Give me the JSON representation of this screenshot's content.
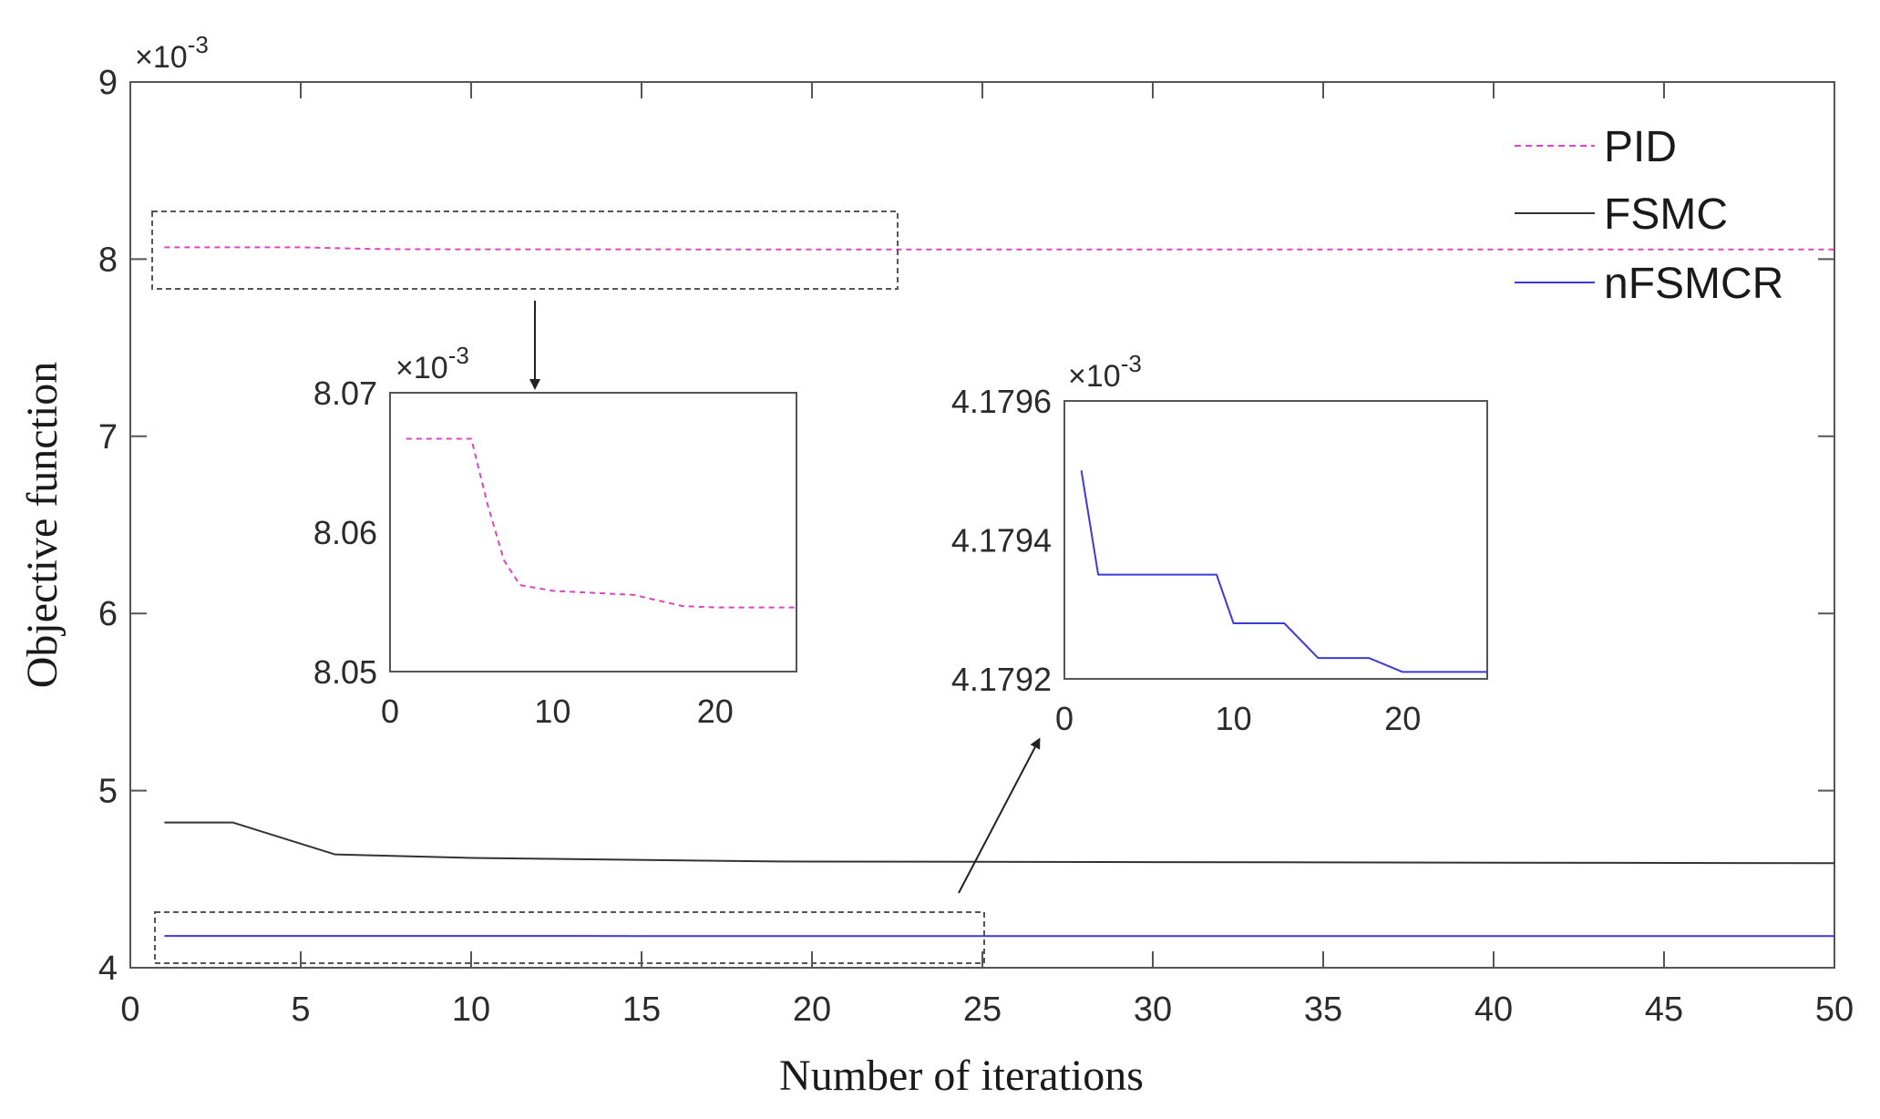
{
  "chart_data": [
    {
      "type": "line",
      "xlabel": "Number of iterations",
      "ylabel": "Objective function",
      "y_multiplier": "×10",
      "y_multiplier_exp": "-3",
      "xlim": [
        0,
        50
      ],
      "ylim": [
        4,
        9
      ],
      "x_ticks": [
        "0",
        "5",
        "10",
        "15",
        "20",
        "25",
        "30",
        "35",
        "40",
        "45",
        "50"
      ],
      "y_ticks": [
        "4",
        "5",
        "6",
        "7",
        "8",
        "9"
      ],
      "legend_position": "top-right",
      "series": [
        {
          "name": "PID",
          "color": "#d946c4",
          "style": "dashed",
          "x": [
            1,
            5,
            6,
            7,
            8,
            10,
            15,
            18,
            20,
            25,
            50
          ],
          "y": [
            8.0667,
            8.0667,
            8.062,
            8.058,
            8.0562,
            8.0558,
            8.0555,
            8.0547,
            8.0546,
            8.0546,
            8.0546
          ]
        },
        {
          "name": "FSMC",
          "color": "#333333",
          "style": "solid",
          "x": [
            1,
            3,
            6,
            10,
            19,
            50
          ],
          "y": [
            4.82,
            4.82,
            4.64,
            4.62,
            4.6,
            4.59
          ]
        },
        {
          "name": "nFSMCR",
          "color": "#3b3bd6",
          "style": "solid",
          "x": [
            1,
            2,
            9,
            10,
            13,
            15,
            18,
            20,
            50
          ],
          "y": [
            4.1795,
            4.17935,
            4.17935,
            4.17928,
            4.17928,
            4.17923,
            4.17923,
            4.17921,
            4.17921
          ]
        }
      ]
    },
    {
      "type": "line",
      "xlim": [
        0,
        25
      ],
      "ylim": [
        8.05,
        8.07
      ],
      "x_ticks": [
        "0",
        "10",
        "20"
      ],
      "y_ticks": [
        "8.05",
        "8.06",
        "8.07"
      ],
      "y_multiplier": "×10",
      "y_multiplier_exp": "-3",
      "series": [
        {
          "color": "#d946c4",
          "style": "dashed",
          "x": [
            1,
            5,
            6,
            7,
            8,
            10,
            15,
            18,
            20,
            25
          ],
          "y": [
            8.0667,
            8.0667,
            8.062,
            8.058,
            8.0562,
            8.0558,
            8.0555,
            8.0547,
            8.0546,
            8.0546
          ]
        }
      ]
    },
    {
      "type": "line",
      "xlim": [
        0,
        25
      ],
      "ylim": [
        4.1792,
        4.1796
      ],
      "x_ticks": [
        "0",
        "10",
        "20"
      ],
      "y_ticks": [
        "4.1792",
        "4.1794",
        "4.1796"
      ],
      "y_multiplier": "×10",
      "y_multiplier_exp": "-3",
      "series": [
        {
          "color": "#3b3bd6",
          "style": "solid",
          "x": [
            1,
            2,
            9,
            10,
            13,
            15,
            18,
            20,
            25
          ],
          "y": [
            4.1795,
            4.17935,
            4.17935,
            4.17928,
            4.17928,
            4.17923,
            4.17923,
            4.17921,
            4.17921
          ]
        }
      ]
    }
  ]
}
